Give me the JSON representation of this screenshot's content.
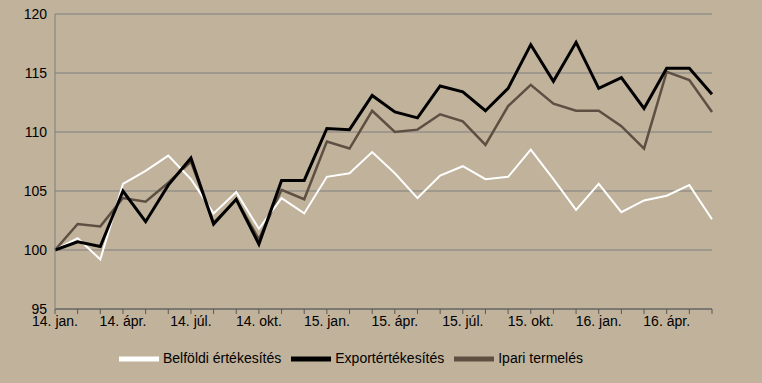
{
  "chart_data": {
    "type": "line",
    "categories": [
      "14. jan.",
      null,
      null,
      "14. ápr.",
      null,
      null,
      "14. júl.",
      null,
      null,
      "14. okt.",
      null,
      null,
      "15. jan.",
      null,
      null,
      "15. ápr.",
      null,
      null,
      "15. júl.",
      null,
      null,
      "15. okt.",
      null,
      null,
      "16. jan.",
      null,
      null,
      "16. ápr.",
      null,
      null
    ],
    "series": [
      {
        "name": "Ipari termelés",
        "color": "#5e4f43",
        "values": [
          100,
          102.2,
          102,
          104.4,
          104.1,
          105.7,
          107.5,
          102.3,
          104.3,
          100.9,
          105.1,
          104.3,
          109.2,
          108.6,
          111.8,
          110,
          110.2,
          111.5,
          110.9,
          108.9,
          112.2,
          114,
          112.4,
          111.8,
          111.8,
          110.5,
          108.6,
          115.1,
          114.4,
          111.7
        ]
      },
      {
        "name": "Belföldi értékesítés",
        "color": "#ffffff",
        "values": [
          100,
          101,
          99.2,
          105.6,
          106.7,
          108,
          106,
          103.1,
          104.9,
          101.8,
          104.4,
          103.1,
          106.2,
          106.5,
          108.3,
          106.5,
          104.4,
          106.3,
          107.1,
          106,
          106.2,
          108.5,
          106,
          103.4,
          105.6,
          103.2,
          104.2,
          104.6,
          105.5,
          102.6
        ]
      },
      {
        "name": "Exportértékesítés",
        "color": "#000000",
        "values": [
          100,
          100.7,
          100.3,
          105,
          102.4,
          105.5,
          107.8,
          102.2,
          104.3,
          100.5,
          105.9,
          105.9,
          110.3,
          110.2,
          113.1,
          111.7,
          111.2,
          113.9,
          113.4,
          111.8,
          113.7,
          117.4,
          114.3,
          117.6,
          113.7,
          114.6,
          112,
          115.4,
          115.4,
          113.2
        ]
      }
    ],
    "ylim": [
      95,
      120
    ],
    "yticks": [
      95,
      100,
      105,
      110,
      115,
      120
    ],
    "grid": true,
    "legend": "bottom"
  }
}
